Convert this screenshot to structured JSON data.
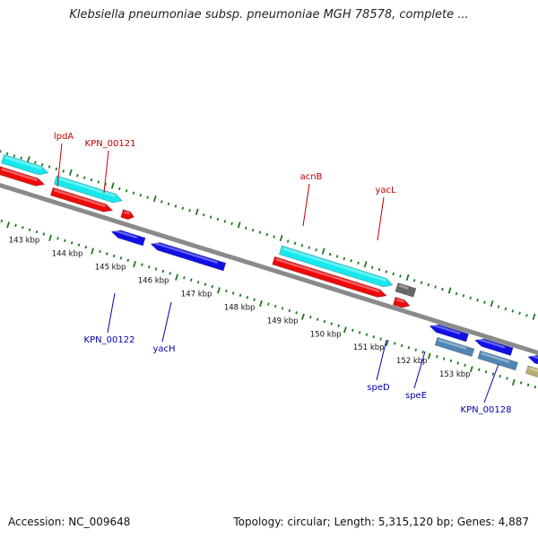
{
  "title": "Klebsiella pneumoniae subsp. pneumoniae MGH 78578, complete ...",
  "footer": {
    "accession": "Accession: NC_009648",
    "stats": "Topology: circular; Length: 5,315,120 bp; Genes: 4,887"
  },
  "colors": {
    "backbone": "#8a8a8a",
    "tick": "#1f7a1f",
    "label_forward": "#c00000",
    "label_reverse": "#0000b0",
    "cyan": "#17e8ee",
    "red": "#ee0a0a",
    "blue": "#1010e6",
    "steel": "#4f86b4",
    "gray": "#666666",
    "olive": "#b8b070"
  },
  "ticks": [
    {
      "label": "143 kbp"
    },
    {
      "label": "144 kbp"
    },
    {
      "label": "145 kbp"
    },
    {
      "label": "146 kbp"
    },
    {
      "label": "147 kbp"
    },
    {
      "label": "148 kbp"
    },
    {
      "label": "149 kbp"
    },
    {
      "label": "150 kbp"
    },
    {
      "label": "151 kbp"
    },
    {
      "label": "152 kbp"
    },
    {
      "label": "153 kbp"
    }
  ],
  "gene_labels": [
    {
      "text": "lpdA",
      "strand": "forward"
    },
    {
      "text": "KPN_00121",
      "strand": "forward"
    },
    {
      "text": "acnB",
      "strand": "forward"
    },
    {
      "text": "yacL",
      "strand": "forward"
    },
    {
      "text": "KPN_00122",
      "strand": "reverse"
    },
    {
      "text": "yacH",
      "strand": "reverse"
    },
    {
      "text": "speD",
      "strand": "reverse"
    },
    {
      "text": "speE",
      "strand": "reverse"
    },
    {
      "text": "KPN_00128",
      "strand": "reverse"
    }
  ]
}
